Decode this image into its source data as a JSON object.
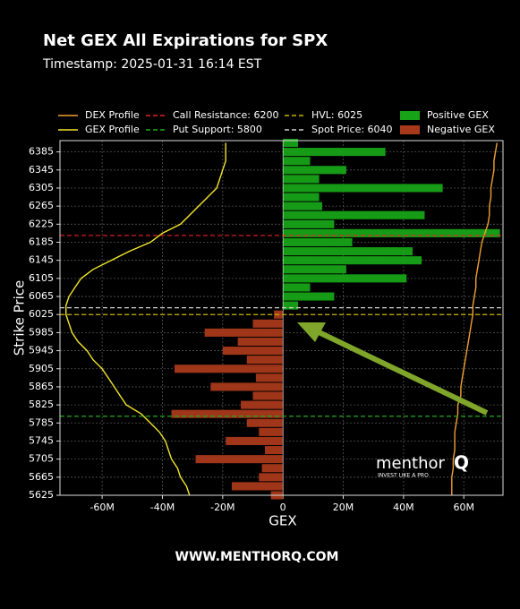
{
  "chart_data": {
    "type": "bar",
    "orientation": "horizontal",
    "title": "Net GEX All Expirations for SPX",
    "subtitle": "Timestamp: 2025-01-31 16:14 EST",
    "xlabel": "GEX",
    "ylabel": "Strike Price",
    "footer": "WWW.MENTHORQ.COM",
    "watermark": "menthor",
    "watermark_mark": "Q",
    "watermark_tagline": "INVEST LIKE A PRO",
    "strikes": [
      5625,
      5645,
      5665,
      5685,
      5705,
      5725,
      5745,
      5765,
      5785,
      5805,
      5825,
      5845,
      5865,
      5885,
      5905,
      5925,
      5945,
      5965,
      5985,
      6005,
      6025,
      6045,
      6065,
      6085,
      6105,
      6125,
      6145,
      6165,
      6185,
      6205,
      6225,
      6245,
      6265,
      6285,
      6305,
      6325,
      6345,
      6365,
      6385,
      6405
    ],
    "series": [
      {
        "name": "Positive GEX",
        "color": "#17a317",
        "kind": "bar",
        "values": [
          null,
          null,
          null,
          null,
          null,
          null,
          null,
          null,
          null,
          null,
          null,
          null,
          null,
          null,
          null,
          null,
          null,
          null,
          null,
          null,
          null,
          5,
          17,
          9,
          41,
          21,
          46,
          43,
          23,
          72,
          17,
          47,
          13,
          12,
          53,
          12,
          21,
          9,
          34,
          5
        ]
      },
      {
        "name": "Negative GEX",
        "color": "#a8381a",
        "kind": "bar",
        "values": [
          -4,
          -17,
          -8,
          -7,
          -29,
          -6,
          -19,
          -8,
          -12,
          -37,
          -14,
          -10,
          -24,
          -9,
          -36,
          -12,
          -20,
          -15,
          -26,
          -10,
          -3,
          null,
          null,
          null,
          null,
          null,
          null,
          null,
          null,
          null,
          null,
          null,
          null,
          null,
          null,
          null,
          null,
          null,
          null,
          null
        ]
      },
      {
        "name": "GEX Profile",
        "color": "#f2e62a",
        "kind": "line",
        "values": [
          -31,
          -32,
          -34,
          -35,
          -37,
          -38,
          -39,
          -41,
          -44,
          -47,
          -52,
          -54,
          -56,
          -58,
          -60,
          -63,
          -65,
          -68,
          -70,
          -71,
          -72,
          -72,
          -71,
          -69,
          -67,
          -63,
          -57,
          -51,
          -44,
          -40,
          -34,
          -31,
          -28,
          -25,
          -22,
          -21,
          -20,
          -19,
          -19,
          -19
        ]
      },
      {
        "name": "DEX Profile",
        "color": "#f0a030",
        "kind": "line",
        "values": [
          56,
          56,
          56,
          56.5,
          56.5,
          57,
          57,
          57,
          57.5,
          58,
          58,
          59,
          59,
          59.5,
          60,
          60.5,
          61,
          61.5,
          62,
          62.5,
          63,
          63,
          63.5,
          64,
          64,
          64.5,
          65,
          65.5,
          66,
          67,
          68,
          68.5,
          68.5,
          69,
          69,
          69.5,
          70,
          70,
          70.5,
          71
        ]
      }
    ],
    "lines": [
      {
        "name": "Call Resistance: 6200",
        "value": 6200,
        "color": "#e8202a"
      },
      {
        "name": "Put Support: 5800",
        "value": 5800,
        "color": "#22a822"
      },
      {
        "name": "HVL: 6025",
        "value": 6025,
        "color": "#c8b400"
      },
      {
        "name": "Spot Price: 6040",
        "value": 6040,
        "color": "#d0d0d0"
      }
    ],
    "xlim": [
      -74,
      73
    ],
    "ylim": [
      5625,
      6410
    ],
    "xticks": [
      {
        "value": -60,
        "label": "-60M"
      },
      {
        "value": -40,
        "label": "-40M"
      },
      {
        "value": -20,
        "label": "-20M"
      },
      0,
      {
        "value": 20,
        "label": "20M"
      },
      {
        "value": 40,
        "label": "40M"
      },
      {
        "value": 60,
        "label": "60M"
      }
    ],
    "yticks": [
      5625,
      5665,
      5705,
      5745,
      5785,
      5825,
      5865,
      5905,
      5945,
      5985,
      6025,
      6065,
      6105,
      6145,
      6185,
      6225,
      6265,
      6305,
      6345,
      6385
    ],
    "grid": true
  }
}
